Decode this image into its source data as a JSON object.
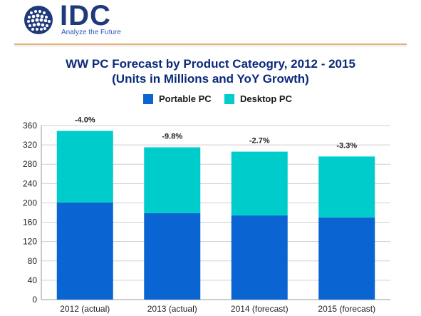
{
  "logo": {
    "wordmark": "IDC",
    "tagline": "Analyze the Future"
  },
  "colors": {
    "portable": "#0a64d2",
    "desktop": "#00cccc",
    "title": "#0a2a7a",
    "grid": "#cfcfcf"
  },
  "chart_data": {
    "type": "bar",
    "stacked": true,
    "title": "WW PC Forecast by Product Cateogry, 2012 - 2015",
    "subtitle": "(Units in Millions and YoY Growth)",
    "xlabel": "",
    "ylabel": "",
    "ylim": [
      0,
      360
    ],
    "yticks": [
      0,
      40,
      80,
      120,
      160,
      200,
      240,
      280,
      320,
      360
    ],
    "grid": true,
    "legend_position": "top-center",
    "categories": [
      "2012 (actual)",
      "2013 (actual)",
      "2014 (forecast)",
      "2015 (forecast)"
    ],
    "series": [
      {
        "name": "Portable PC",
        "values": [
          201,
          179,
          174,
          170
        ],
        "color": "#0a64d2"
      },
      {
        "name": "Desktop PC",
        "values": [
          148,
          136,
          132,
          126
        ],
        "color": "#00cccc"
      }
    ],
    "annotations": [
      "-4.0%",
      "-9.8%",
      "-2.7%",
      "-3.3%"
    ]
  }
}
